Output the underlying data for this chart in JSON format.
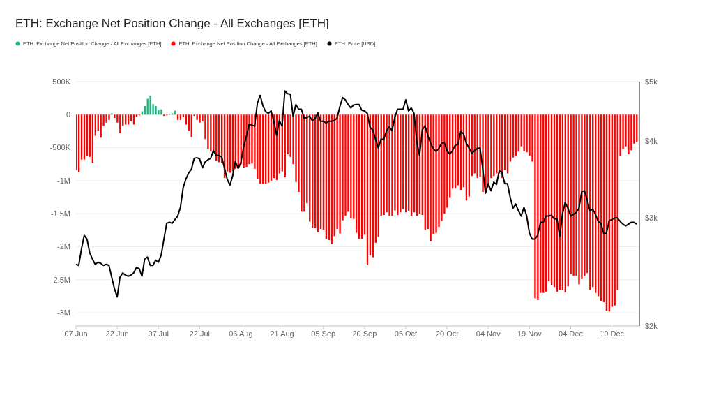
{
  "chart_data": {
    "type": "bar",
    "title": "ETH: Exchange Net Position Change - All Exchanges [ETH]",
    "x": [
      "--06-07",
      "--06-08",
      "--06-09",
      "--06-10",
      "--06-11",
      "--06-12",
      "--06-13",
      "--06-14",
      "--06-15",
      "--06-16",
      "--06-17",
      "--06-18",
      "--06-19",
      "--06-20",
      "--06-21",
      "--06-22",
      "--06-23",
      "--06-24",
      "--06-25",
      "--06-26",
      "--06-27",
      "--06-28",
      "--06-29",
      "--06-30",
      "--07-01",
      "--07-02",
      "--07-03",
      "--07-04",
      "--07-05",
      "--07-06",
      "--07-07",
      "--07-08",
      "--07-09",
      "--07-10",
      "--07-11",
      "--07-12",
      "--07-13",
      "--07-14",
      "--07-15",
      "--07-16",
      "--07-17",
      "--07-18",
      "--07-19",
      "--07-20",
      "--07-21",
      "--07-22",
      "--07-23",
      "--07-24",
      "--07-25",
      "--07-26",
      "--07-27",
      "--07-28",
      "--07-29",
      "--07-30",
      "--07-31",
      "--08-01",
      "--08-02",
      "--08-03",
      "--08-04",
      "--08-05",
      "--08-06",
      "--08-07",
      "--08-08",
      "--08-09",
      "--08-10",
      "--08-11",
      "--08-12",
      "--08-13",
      "--08-14",
      "--08-15",
      "--08-16",
      "--08-17",
      "--08-18",
      "--08-19",
      "--08-20",
      "--08-21",
      "--08-22",
      "--08-23",
      "--08-24",
      "--08-25",
      "--08-26",
      "--08-27",
      "--08-28",
      "--08-29",
      "--08-30",
      "--08-31",
      "--09-01",
      "--09-02",
      "--09-03",
      "--09-04",
      "--09-05",
      "--09-06",
      "--09-07",
      "--09-08",
      "--09-09",
      "--09-10",
      "--09-11",
      "--09-12",
      "--09-13",
      "--09-14",
      "--09-15",
      "--09-16",
      "--09-17",
      "--09-18",
      "--09-19",
      "--09-20",
      "--09-21",
      "--09-22",
      "--09-23",
      "--09-24",
      "--09-25",
      "--09-26",
      "--09-27",
      "--09-28",
      "--09-29",
      "--09-30",
      "--10-01",
      "--10-02",
      "--10-03",
      "--10-04",
      "--10-05",
      "--10-06",
      "--10-07",
      "--10-08",
      "--10-09",
      "--10-10",
      "--10-11",
      "--10-12",
      "--10-13",
      "--10-14",
      "--10-15",
      "--10-16",
      "--10-17",
      "--10-18",
      "--10-19",
      "--10-20",
      "--10-21",
      "--10-22",
      "--10-23",
      "--10-24",
      "--10-25",
      "--10-26",
      "--10-27",
      "--10-28",
      "--10-29",
      "--10-30",
      "--10-31",
      "--11-01",
      "--11-02",
      "--11-03",
      "--11-04",
      "--11-05",
      "--11-06",
      "--11-07",
      "--11-08",
      "--11-09",
      "--11-10",
      "--11-11",
      "--11-12",
      "--11-13",
      "--11-14",
      "--11-15",
      "--11-16",
      "--11-17",
      "--11-18",
      "--11-19",
      "--11-20",
      "--11-21",
      "--11-22",
      "--11-23",
      "--11-24",
      "--11-25",
      "--11-26",
      "--11-27",
      "--11-28",
      "--11-29",
      "--11-30",
      "--12-01",
      "--12-02",
      "--12-03",
      "--12-04",
      "--12-05",
      "--12-06",
      "--12-07",
      "--12-08",
      "--12-09",
      "--12-10",
      "--12-11",
      "--12-12",
      "--12-13",
      "--12-14",
      "--12-15",
      "--12-16",
      "--12-17",
      "--12-18",
      "--12-19",
      "--12-20",
      "--12-21",
      "--12-22",
      "--12-23",
      "--12-24",
      "--12-25",
      "--12-26",
      "--12-27",
      "--12-28"
    ],
    "series": [
      {
        "name": "ETH: Exchange Net Position Change - All Exchanges [ETH]",
        "color": "#1db47a",
        "x": [
          "--06-20",
          "--07-01",
          "--07-02",
          "--07-03",
          "--07-04",
          "--07-05",
          "--07-06",
          "--07-07",
          "--07-08",
          "--07-11",
          "--07-12",
          "--07-13"
        ],
        "values": [
          20000,
          50000,
          130000,
          240000,
          290000,
          160000,
          130000,
          70000,
          80000,
          10000,
          20000,
          60000
        ]
      },
      {
        "name": "ETH: Exchange Net Position Change - All Exchanges [ETH]",
        "color": "#ff0000",
        "values": [
          -840000,
          -870000,
          -680000,
          -680000,
          -630000,
          -640000,
          -730000,
          -320000,
          -240000,
          -350000,
          -170000,
          -120000,
          -80000,
          null,
          -50000,
          -120000,
          -280000,
          -170000,
          -150000,
          -150000,
          -100000,
          -150000,
          -30000,
          -10000,
          null,
          null,
          null,
          null,
          null,
          null,
          null,
          null,
          -20000,
          -10000,
          null,
          null,
          null,
          -80000,
          -80000,
          -40000,
          -150000,
          -250000,
          -340000,
          -20000,
          -80000,
          -120000,
          -100000,
          -370000,
          -520000,
          -560000,
          -580000,
          -700000,
          -720000,
          -730000,
          -960000,
          -860000,
          -880000,
          -860000,
          -820000,
          -780000,
          -750000,
          -800000,
          -790000,
          -750000,
          -740000,
          -820000,
          -970000,
          -1050000,
          -1050000,
          -1050000,
          -1030000,
          -1000000,
          -960000,
          -990000,
          -890000,
          -860000,
          -950000,
          -600000,
          -640000,
          -750000,
          -1020000,
          -1170000,
          -1470000,
          -1470000,
          -1340000,
          -1620000,
          -1710000,
          -1720000,
          -1780000,
          -1730000,
          -1740000,
          -1880000,
          -1900000,
          -1960000,
          -1840000,
          -1730000,
          -1800000,
          -1600000,
          -1530000,
          -1470000,
          -1570000,
          -1580000,
          -1790000,
          -1880000,
          -1880000,
          -1820000,
          -2280000,
          -2130000,
          -2160000,
          -1940000,
          -1850000,
          -1530000,
          -1520000,
          -1480000,
          -1530000,
          -1530000,
          -1450000,
          -1520000,
          -1480000,
          -1430000,
          -1480000,
          -1460000,
          -1530000,
          -1480000,
          -1530000,
          -1500000,
          -1520000,
          -1750000,
          -1730000,
          -1920000,
          -1810000,
          -1790000,
          -1700000,
          -1610000,
          -1500000,
          -1410000,
          -1250000,
          -1120000,
          -1120000,
          -1070000,
          -1140000,
          -1100000,
          -1300000,
          -1240000,
          -930000,
          -890000,
          -960000,
          -940000,
          -1170000,
          -1140000,
          -1100000,
          -960000,
          -930000,
          -890000,
          -890000,
          -960000,
          -840000,
          -890000,
          -710000,
          -650000,
          -620000,
          -560000,
          -480000,
          -550000,
          -570000,
          -620000,
          -710000,
          -2780000,
          -2810000,
          -2700000,
          -2700000,
          -2680000,
          -2520000,
          -2580000,
          -2610000,
          -2680000,
          -2660000,
          -2650000,
          -2690000,
          -2600000,
          -2410000,
          -2440000,
          -2440000,
          -2570000,
          -2490000,
          -2450000,
          -2400000,
          -2650000,
          -2610000,
          -2700000,
          -2750000,
          -2820000,
          -2840000,
          -2970000,
          -2980000,
          -2910000,
          -2890000,
          -2660000,
          -630000,
          -520000,
          -480000,
          -600000,
          -540000,
          -440000,
          -420000
        ]
      },
      {
        "name": "ETH: Price [USD]",
        "color": "#000000",
        "type": "line",
        "axis": "y2",
        "values": [
          2520,
          2510,
          2670,
          2810,
          2770,
          2630,
          2570,
          2520,
          2540,
          2530,
          2510,
          2520,
          2510,
          2400,
          2300,
          2230,
          2400,
          2440,
          2420,
          2410,
          2420,
          2440,
          2490,
          2480,
          2410,
          2570,
          2590,
          2510,
          2510,
          2560,
          2540,
          2610,
          2770,
          2940,
          2950,
          2940,
          2980,
          3020,
          3120,
          3360,
          3470,
          3550,
          3600,
          3750,
          3760,
          3740,
          3620,
          3700,
          3730,
          3750,
          3860,
          3790,
          3790,
          3770,
          3620,
          3470,
          3390,
          3510,
          3710,
          3610,
          3690,
          3920,
          4070,
          4260,
          4250,
          4230,
          4610,
          4750,
          4570,
          4470,
          4440,
          4480,
          4300,
          4090,
          4320,
          4230,
          4830,
          4780,
          4770,
          4390,
          4590,
          4510,
          4510,
          4360,
          4370,
          4390,
          4320,
          4350,
          4450,
          4310,
          4310,
          4280,
          4310,
          4310,
          4320,
          4360,
          4550,
          4710,
          4670,
          4590,
          4530,
          4580,
          4590,
          4590,
          4490,
          4480,
          4440,
          4210,
          4170,
          4030,
          3900,
          4030,
          4030,
          4160,
          4220,
          4160,
          4370,
          4510,
          4510,
          4510,
          4670,
          4480,
          4530,
          4440,
          3990,
          3790,
          4170,
          4240,
          4090,
          3970,
          3890,
          3850,
          3890,
          3970,
          3980,
          3860,
          3810,
          3860,
          3940,
          3950,
          4150,
          4110,
          3970,
          3900,
          3820,
          3860,
          3890,
          3900,
          3610,
          3290,
          3410,
          3320,
          3430,
          3400,
          3580,
          3560,
          3410,
          3410,
          3240,
          3110,
          3160,
          3080,
          3020,
          3120,
          3020,
          2830,
          2770,
          2770,
          2810,
          2950,
          2950,
          3020,
          3020,
          3030,
          2990,
          2990,
          2800,
          3040,
          3180,
          3110,
          3020,
          3040,
          3060,
          3110,
          3310,
          3320,
          3210,
          3080,
          3100,
          3040,
          2960,
          2940,
          2830,
          2830,
          2970,
          2980,
          3000,
          3000,
          2960,
          2930,
          2910,
          2930,
          2950,
          2950,
          2930
        ]
      }
    ],
    "stacked": true,
    "xlim": [
      "--06-07",
      "--12-29"
    ],
    "xticks": [
      {
        "value": "--06-07",
        "label": "07 Jun"
      },
      {
        "value": "--06-22",
        "label": "22 Jun"
      },
      {
        "value": "--07-07",
        "label": "07 Jul"
      },
      {
        "value": "--07-22",
        "label": "22 Jul"
      },
      {
        "value": "--08-06",
        "label": "06 Aug"
      },
      {
        "value": "--08-21",
        "label": "21 Aug"
      },
      {
        "value": "--09-05",
        "label": "05 Sep"
      },
      {
        "value": "--09-20",
        "label": "20 Sep"
      },
      {
        "value": "--10-05",
        "label": "05 Oct"
      },
      {
        "value": "--10-20",
        "label": "20 Oct"
      },
      {
        "value": "--11-04",
        "label": "04 Nov"
      },
      {
        "value": "--11-19",
        "label": "19 Nov"
      },
      {
        "value": "--12-04",
        "label": "04 Dec"
      },
      {
        "value": "--12-19",
        "label": "19 Dec"
      }
    ],
    "ylim": [
      -3200000,
      500000
    ],
    "yticks": [
      {
        "value": 500000,
        "label": "500K"
      },
      0,
      {
        "value": -500000,
        "label": "-500K"
      },
      {
        "value": -1000000,
        "label": "-1M"
      },
      {
        "value": -1500000,
        "label": "-1.5M"
      },
      {
        "value": -2000000,
        "label": "-2M"
      },
      {
        "value": -2500000,
        "label": "-2.5M"
      },
      {
        "value": -3000000,
        "label": "-3M"
      }
    ],
    "y2lim": [
      2000,
      5000
    ],
    "y2ticks": [
      {
        "value": 2000,
        "label": "$2k"
      },
      {
        "value": 3000,
        "label": "$3k"
      },
      {
        "value": 4000,
        "label": "$4k"
      },
      {
        "value": 5000,
        "label": "$5k"
      }
    ],
    "log": "y2",
    "grid": "y",
    "legend": "top left"
  }
}
